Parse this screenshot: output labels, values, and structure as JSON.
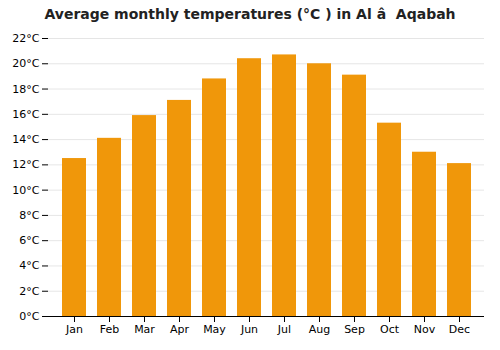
{
  "chart_data": {
    "type": "bar",
    "title": "Average monthly temperatures (°C ) in Al â  Aqabah",
    "categories": [
      "Jan",
      "Feb",
      "Mar",
      "Apr",
      "May",
      "Jun",
      "Jul",
      "Aug",
      "Sep",
      "Oct",
      "Nov",
      "Dec"
    ],
    "values": [
      12.5,
      14.1,
      15.9,
      17.1,
      18.8,
      20.4,
      20.7,
      20.0,
      19.1,
      15.3,
      13.0,
      12.1
    ],
    "color": "#F0970A",
    "ylim": [
      0,
      22
    ],
    "yticks": [
      {
        "value": 0,
        "label": "0°C"
      },
      {
        "value": 2,
        "label": "2°C"
      },
      {
        "value": 4,
        "label": "4°C"
      },
      {
        "value": 6,
        "label": "6°C"
      },
      {
        "value": 8,
        "label": "8°C"
      },
      {
        "value": 10,
        "label": "10°C"
      },
      {
        "value": 12,
        "label": "12°C"
      },
      {
        "value": 14,
        "label": "14°C"
      },
      {
        "value": 16,
        "label": "16°C"
      },
      {
        "value": 18,
        "label": "18°C"
      },
      {
        "value": 20,
        "label": "20°C"
      },
      {
        "value": 22,
        "label": "22°C"
      }
    ],
    "grid": true
  }
}
